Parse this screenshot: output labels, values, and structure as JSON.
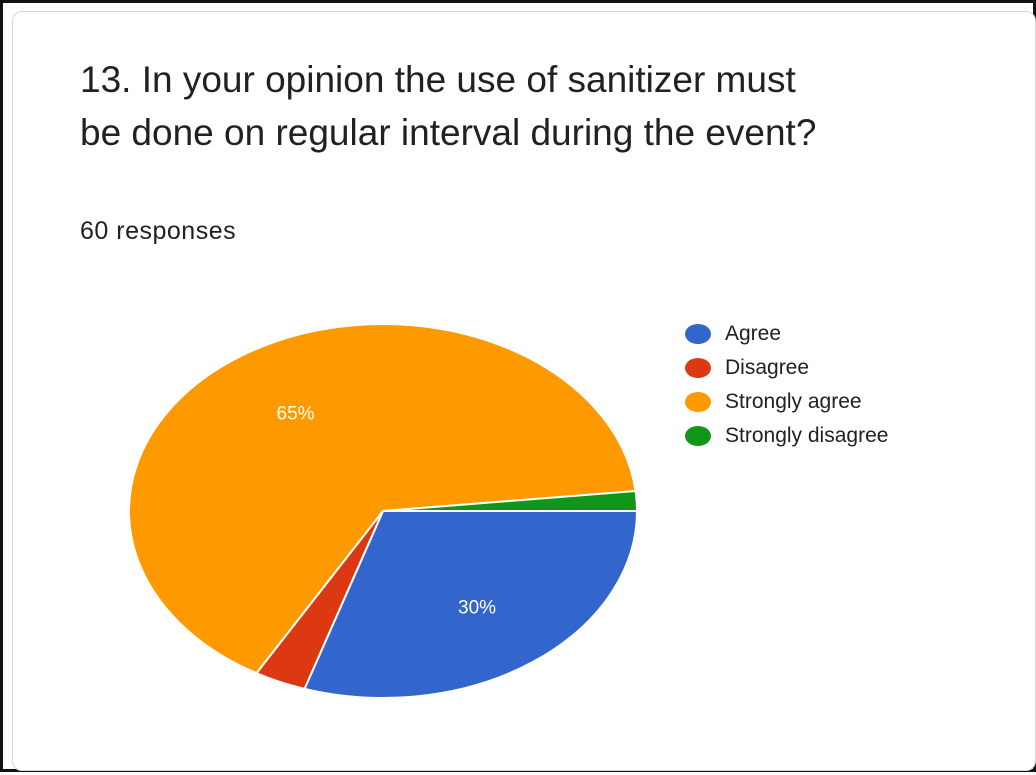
{
  "question": {
    "title": "13. In your opinion the use of sanitizer must be done on regular interval during the event?",
    "responses": "60 responses"
  },
  "chart_data": {
    "type": "pie",
    "title": "13. In your opinion the use of sanitizer must be done on regular interval during the event?",
    "subtitle": "60 responses",
    "legend_position": "right",
    "slices": [
      {
        "name": "Agree",
        "value": 30,
        "label": "30%",
        "color": "#3366cc"
      },
      {
        "name": "Disagree",
        "value": 3.3,
        "label": "",
        "color": "#dc3912"
      },
      {
        "name": "Strongly agree",
        "value": 65,
        "label": "65%",
        "color": "#ff9900"
      },
      {
        "name": "Strongly disagree",
        "value": 1.7,
        "label": "",
        "color": "#109618"
      }
    ]
  }
}
